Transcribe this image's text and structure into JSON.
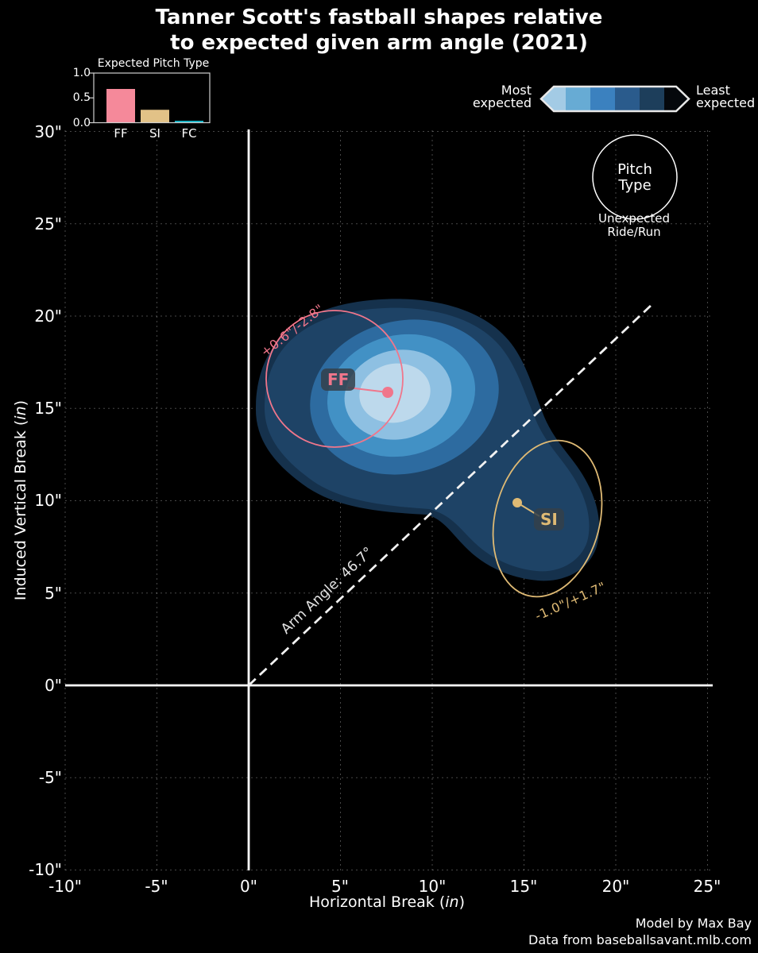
{
  "title": {
    "line1": "Tanner Scott's fastball shapes relative",
    "line2": "to expected given arm angle (2021)"
  },
  "inset": {
    "title": "Expected Pitch Type",
    "y_ticks": [
      "1.0",
      "0.5",
      "0.0"
    ],
    "categories": [
      "FF",
      "SI",
      "FC"
    ],
    "values": [
      0.68,
      0.26,
      0.04
    ],
    "bar_colors": [
      "#f5899a",
      "#e2c287",
      "#14b3c6"
    ]
  },
  "colorbar": {
    "most_line1": "Most",
    "most_line2": "expected",
    "least_line1": "Least",
    "least_line2": "expected",
    "colors": [
      "#a3cbe5",
      "#67abd4",
      "#3b81bf",
      "#2a5b8c",
      "#1d3e5b",
      "#05080c"
    ]
  },
  "pitch_legend": {
    "line1": "Pitch",
    "line2": "Type",
    "sub_line1": "Unexpected",
    "sub_line2": "Ride/Run"
  },
  "axes": {
    "x_ticks": [
      "-10\"",
      "-5\"",
      "0\"",
      "5\"",
      "10\"",
      "15\"",
      "20\"",
      "25\""
    ],
    "y_ticks": [
      "30\"",
      "25\"",
      "20\"",
      "15\"",
      "10\"",
      "5\"",
      "0\"",
      "-5\"",
      "-10\""
    ],
    "x_label_prefix": "Horizontal Break (",
    "x_label_unit": "in",
    "x_label_suffix": ")",
    "y_label_prefix": "Induced Vertical Break (",
    "y_label_unit": "in",
    "y_label_suffix": ")"
  },
  "annotations": {
    "ff_label": "FF",
    "ff_offset": "+0.6\"/-2.8\"",
    "si_label": "SI",
    "si_offset": "-1.0\"/+1.7\"",
    "arm_angle": "Arm Angle: 46.7°"
  },
  "credits": {
    "line1": "Model by Max Bay",
    "line2": "Data from baseballsavant.mlb.com"
  },
  "colors": {
    "ff_accent": "#f0768b",
    "si_accent": "#dfba74",
    "label_box_bg": "rgba(52,63,74,0.85)",
    "axis_line": "#ffffff",
    "grid": "rgba(255,255,255,0.28)"
  },
  "chart_data": {
    "type": "contour_scatter",
    "title": "Tanner Scott's fastball shapes relative to expected given arm angle (2021)",
    "xlabel": "Horizontal Break (in)",
    "ylabel": "Induced Vertical Break (in)",
    "xlim": [
      -10,
      25
    ],
    "ylim": [
      -10,
      30
    ],
    "x_ticks_in": [
      -10,
      -5,
      0,
      5,
      10,
      15,
      20,
      25
    ],
    "y_ticks_in": [
      30,
      25,
      20,
      15,
      10,
      5,
      0,
      -5,
      -10
    ],
    "grid": true,
    "arm_angle_deg": 46.7,
    "arm_angle_line": {
      "x_in": [
        0,
        21.9
      ],
      "y_in": [
        0,
        20.7
      ]
    },
    "legend_note": "contour bands shade from most expected (light blue) to least expected (dark navy)",
    "contour_colors_outer_to_inner": [
      "#15314c",
      "#1e4366",
      "#2d6ba0",
      "#4291c5",
      "#8ec0e2",
      "#bdd9ec"
    ],
    "pitches": [
      {
        "code": "FF",
        "actual_hb_in": 7.5,
        "actual_ivb_in": 15.9,
        "expected_hb_in": 4.7,
        "expected_ivb_in": 16.6,
        "offset_label": "+0.6\"/-2.8\""
      },
      {
        "code": "SI",
        "actual_hb_in": 14.6,
        "actual_ivb_in": 9.9,
        "expected_hb_in": 16.3,
        "expected_ivb_in": 9.0,
        "offset_label": "-1.0\"/+1.7\""
      }
    ],
    "expected_pitch_type": {
      "categories": [
        "FF",
        "SI",
        "FC"
      ],
      "probabilities": [
        0.68,
        0.26,
        0.04
      ]
    }
  }
}
